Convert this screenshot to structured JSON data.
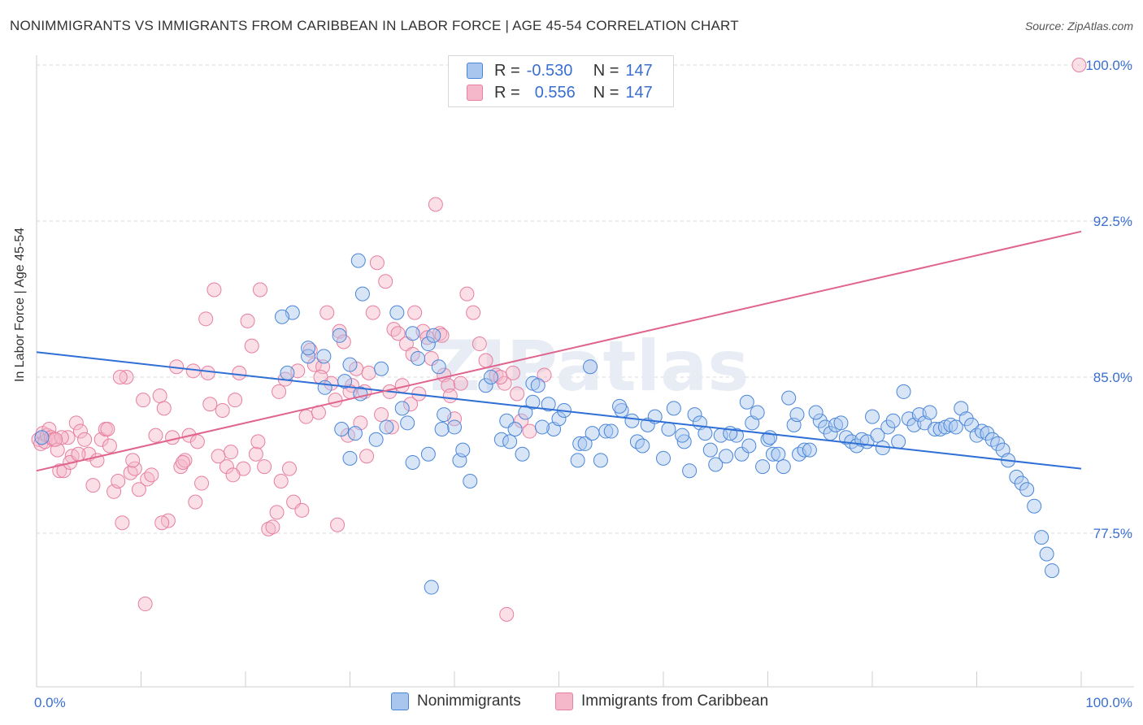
{
  "title": "NONIMMIGRANTS VS IMMIGRANTS FROM CARIBBEAN IN LABOR FORCE | AGE 45-54 CORRELATION CHART",
  "source": "Source: ZipAtlas.com",
  "watermark": "ZIPatlas",
  "legend": {
    "rows": [
      {
        "r_label": "R =",
        "r_value": "-0.530",
        "n_label": "N =",
        "n_value": "147",
        "color": "#a9c6ee"
      },
      {
        "r_label": "R =",
        "r_value": "0.556",
        "n_label": "N =",
        "n_value": "147",
        "color": "#f5b8ca"
      }
    ]
  },
  "bottom_legend": [
    {
      "label": "Nonimmigrants",
      "color": "#a9c6ee"
    },
    {
      "label": "Immigrants from Caribbean",
      "color": "#f5b8ca"
    }
  ],
  "colors": {
    "blue_fill": "#a9c6ee",
    "blue_stroke": "#4a86d8",
    "blue_line": "#2f6fd6",
    "pink_fill": "#f5b8ca",
    "pink_stroke": "#e77fa0",
    "pink_line": "#e0648e",
    "tick_text": "#3a6fd1",
    "grid": "#d9d9d9"
  },
  "chart_data": {
    "type": "scatter",
    "title": "NONIMMIGRANTS VS IMMIGRANTS FROM CARIBBEAN IN LABOR FORCE | AGE 45-54 CORRELATION CHART",
    "xlabel": "",
    "ylabel": "In Labor Force | Age 45-54",
    "xlim": [
      0,
      100
    ],
    "ylim": [
      70.0,
      101.0
    ],
    "x_tick_labels": [
      {
        "value": 0,
        "label": "0.0%"
      },
      {
        "value": 100,
        "label": "100.0%"
      }
    ],
    "y_tick_labels": [
      {
        "value": 77.5,
        "label": "77.5%"
      },
      {
        "value": 85.0,
        "label": "85.0%"
      },
      {
        "value": 92.5,
        "label": "92.5%"
      },
      {
        "value": 100.0,
        "label": "100.0%"
      }
    ],
    "grid": true,
    "legend_position": "top-center",
    "series": [
      {
        "name": "Nonimmigrants",
        "trend": {
          "x": [
            0,
            100
          ],
          "y": [
            86.2,
            80.6
          ]
        },
        "points": [
          [
            0.5,
            82.1
          ],
          [
            24,
            85.2
          ],
          [
            26,
            86.0
          ],
          [
            24.5,
            88.1
          ],
          [
            23.5,
            87.9
          ],
          [
            26,
            86.4
          ],
          [
            27.5,
            86.0
          ],
          [
            29,
            87.0
          ],
          [
            30,
            85.6
          ],
          [
            29.5,
            84.8
          ],
          [
            31,
            84.2
          ],
          [
            30.5,
            82.3
          ],
          [
            30,
            81.1
          ],
          [
            33,
            85.4
          ],
          [
            30.8,
            90.6
          ],
          [
            31.2,
            89.0
          ],
          [
            34.5,
            88.1
          ],
          [
            35,
            83.5
          ],
          [
            35.5,
            82.8
          ],
          [
            33.5,
            82.6
          ],
          [
            36,
            87.1
          ],
          [
            36.5,
            85.9
          ],
          [
            37.5,
            86.6
          ],
          [
            38,
            87.0
          ],
          [
            38.5,
            85.5
          ],
          [
            39,
            83.2
          ],
          [
            37.5,
            81.3
          ],
          [
            36,
            80.9
          ],
          [
            40,
            82.6
          ],
          [
            40.5,
            81.0
          ],
          [
            40.8,
            81.5
          ],
          [
            41.5,
            80.0
          ],
          [
            43,
            84.6
          ],
          [
            43.5,
            85.0
          ],
          [
            44.5,
            82.0
          ],
          [
            45,
            82.9
          ],
          [
            45.8,
            82.5
          ],
          [
            46.5,
            81.3
          ],
          [
            47.5,
            84.7
          ],
          [
            46.8,
            83.3
          ],
          [
            47.5,
            83.8
          ],
          [
            48,
            84.6
          ],
          [
            49,
            83.7
          ],
          [
            49.5,
            82.5
          ],
          [
            50,
            83.0
          ],
          [
            50.5,
            83.4
          ],
          [
            52,
            81.8
          ],
          [
            52.5,
            81.8
          ],
          [
            53,
            85.5
          ],
          [
            54,
            81.0
          ],
          [
            54.5,
            82.4
          ],
          [
            55,
            82.4
          ],
          [
            56,
            83.4
          ],
          [
            57,
            82.9
          ],
          [
            57.5,
            81.9
          ],
          [
            58,
            81.7
          ],
          [
            58.5,
            82.7
          ],
          [
            60,
            81.1
          ],
          [
            60.5,
            82.5
          ],
          [
            61,
            83.5
          ],
          [
            62,
            81.9
          ],
          [
            62.5,
            80.5
          ],
          [
            63,
            83.2
          ],
          [
            63.5,
            82.8
          ],
          [
            64,
            82.3
          ],
          [
            64.5,
            81.5
          ],
          [
            65,
            80.8
          ],
          [
            65.5,
            82.2
          ],
          [
            66,
            81.2
          ],
          [
            67,
            82.2
          ],
          [
            67.5,
            81.3
          ],
          [
            68,
            83.8
          ],
          [
            68.5,
            82.8
          ],
          [
            69,
            83.3
          ],
          [
            69.5,
            80.7
          ],
          [
            70,
            82.0
          ],
          [
            70.5,
            81.3
          ],
          [
            71,
            81.3
          ],
          [
            71.5,
            80.7
          ],
          [
            72,
            84.0
          ],
          [
            72.5,
            82.7
          ],
          [
            73,
            81.3
          ],
          [
            73.5,
            81.5
          ],
          [
            74,
            81.5
          ],
          [
            75,
            82.9
          ],
          [
            75.5,
            82.6
          ],
          [
            76,
            82.3
          ],
          [
            76.5,
            82.7
          ],
          [
            77,
            82.8
          ],
          [
            77.5,
            82.1
          ],
          [
            78,
            81.9
          ],
          [
            78.5,
            81.7
          ],
          [
            79,
            82.0
          ],
          [
            79.5,
            81.9
          ],
          [
            80,
            83.1
          ],
          [
            80.5,
            82.2
          ],
          [
            81,
            81.6
          ],
          [
            81.5,
            82.6
          ],
          [
            82,
            82.9
          ],
          [
            82.5,
            81.9
          ],
          [
            83,
            84.3
          ],
          [
            83.5,
            83.0
          ],
          [
            84,
            82.7
          ],
          [
            84.5,
            83.2
          ],
          [
            85,
            82.8
          ],
          [
            85.5,
            83.3
          ],
          [
            86,
            82.5
          ],
          [
            86.5,
            82.5
          ],
          [
            87,
            82.6
          ],
          [
            87.5,
            82.7
          ],
          [
            88,
            82.6
          ],
          [
            88.5,
            83.5
          ],
          [
            89,
            83.0
          ],
          [
            89.5,
            82.7
          ],
          [
            90,
            82.2
          ],
          [
            90.5,
            82.4
          ],
          [
            91,
            82.3
          ],
          [
            91.5,
            82.0
          ],
          [
            92,
            81.8
          ],
          [
            92.5,
            81.5
          ],
          [
            93,
            81.0
          ],
          [
            93.8,
            80.2
          ],
          [
            94.3,
            79.9
          ],
          [
            94.8,
            79.6
          ],
          [
            95.5,
            78.8
          ],
          [
            96.2,
            77.3
          ],
          [
            96.7,
            76.5
          ],
          [
            97.2,
            75.7
          ],
          [
            37.8,
            74.9
          ],
          [
            38.8,
            82.5
          ],
          [
            27.6,
            84.5
          ],
          [
            29.2,
            82.5
          ],
          [
            32.5,
            82.0
          ],
          [
            45.3,
            81.9
          ],
          [
            48.4,
            82.6
          ],
          [
            51.8,
            81.0
          ],
          [
            53.2,
            82.3
          ],
          [
            55.8,
            83.6
          ],
          [
            59.2,
            83.1
          ],
          [
            61.8,
            82.2
          ],
          [
            66.4,
            82.3
          ],
          [
            68.2,
            81.7
          ],
          [
            70.2,
            82.1
          ],
          [
            72.8,
            83.2
          ],
          [
            74.6,
            83.3
          ]
        ]
      },
      {
        "name": "Immigrants from Caribbean",
        "trend": {
          "x": [
            0,
            100
          ],
          "y": [
            80.5,
            92.0
          ]
        },
        "points": [
          [
            0.2,
            82.0
          ],
          [
            0.4,
            81.8
          ],
          [
            0.6,
            82.3
          ],
          [
            0.8,
            81.9
          ],
          [
            1.0,
            82.2
          ],
          [
            1.2,
            82.5
          ],
          [
            1.4,
            82.1
          ],
          [
            1.6,
            82.0
          ],
          [
            2.0,
            81.5
          ],
          [
            2.2,
            80.5
          ],
          [
            2.6,
            80.5
          ],
          [
            3.0,
            82.1
          ],
          [
            3.4,
            81.2
          ],
          [
            3.8,
            82.8
          ],
          [
            4.2,
            82.4
          ],
          [
            4.6,
            82.0
          ],
          [
            5.0,
            81.3
          ],
          [
            5.4,
            79.8
          ],
          [
            5.8,
            81.0
          ],
          [
            6.2,
            82.0
          ],
          [
            6.6,
            82.5
          ],
          [
            7.0,
            81.7
          ],
          [
            7.4,
            79.5
          ],
          [
            7.8,
            80.0
          ],
          [
            8.2,
            78.0
          ],
          [
            8.6,
            85.0
          ],
          [
            9.0,
            80.4
          ],
          [
            9.4,
            80.6
          ],
          [
            9.8,
            79.6
          ],
          [
            10.2,
            83.9
          ],
          [
            10.6,
            80.1
          ],
          [
            11.0,
            80.3
          ],
          [
            11.4,
            82.2
          ],
          [
            11.8,
            84.1
          ],
          [
            12.2,
            83.5
          ],
          [
            12.6,
            78.1
          ],
          [
            13.0,
            82.1
          ],
          [
            13.4,
            85.5
          ],
          [
            13.8,
            80.7
          ],
          [
            14.2,
            81.0
          ],
          [
            14.6,
            82.2
          ],
          [
            15.0,
            85.3
          ],
          [
            15.4,
            81.9
          ],
          [
            15.8,
            79.9
          ],
          [
            16.2,
            87.8
          ],
          [
            16.6,
            83.7
          ],
          [
            17.0,
            89.2
          ],
          [
            17.4,
            81.2
          ],
          [
            17.8,
            83.4
          ],
          [
            18.2,
            80.7
          ],
          [
            18.6,
            81.4
          ],
          [
            19.0,
            83.9
          ],
          [
            19.4,
            85.2
          ],
          [
            19.8,
            80.6
          ],
          [
            20.2,
            87.7
          ],
          [
            20.6,
            86.5
          ],
          [
            21.0,
            81.3
          ],
          [
            21.4,
            89.2
          ],
          [
            21.8,
            80.7
          ],
          [
            22.2,
            77.7
          ],
          [
            22.6,
            77.8
          ],
          [
            23.0,
            78.5
          ],
          [
            23.4,
            80.0
          ],
          [
            23.8,
            84.9
          ],
          [
            24.2,
            80.6
          ],
          [
            24.6,
            79.0
          ],
          [
            25.0,
            85.3
          ],
          [
            25.4,
            78.6
          ],
          [
            25.8,
            83.1
          ],
          [
            26.2,
            86.3
          ],
          [
            26.6,
            85.6
          ],
          [
            27.0,
            83.3
          ],
          [
            27.4,
            85.5
          ],
          [
            27.8,
            88.1
          ],
          [
            28.2,
            84.7
          ],
          [
            28.6,
            83.9
          ],
          [
            29.0,
            87.2
          ],
          [
            29.4,
            86.7
          ],
          [
            29.8,
            82.2
          ],
          [
            30.2,
            84.6
          ],
          [
            30.6,
            85.4
          ],
          [
            31.0,
            82.8
          ],
          [
            31.4,
            84.3
          ],
          [
            31.8,
            85.2
          ],
          [
            32.2,
            88.1
          ],
          [
            32.6,
            90.5
          ],
          [
            33.0,
            83.2
          ],
          [
            33.4,
            89.6
          ],
          [
            33.8,
            84.3
          ],
          [
            34.2,
            87.3
          ],
          [
            34.6,
            87.1
          ],
          [
            35.0,
            84.6
          ],
          [
            35.4,
            86.6
          ],
          [
            35.8,
            83.7
          ],
          [
            36.2,
            88.1
          ],
          [
            36.6,
            84.2
          ],
          [
            37.0,
            87.2
          ],
          [
            37.4,
            86.9
          ],
          [
            37.8,
            85.9
          ],
          [
            38.2,
            93.3
          ],
          [
            38.6,
            87.1
          ],
          [
            39.0,
            85.1
          ],
          [
            39.4,
            84.6
          ],
          [
            40.0,
            83.0
          ],
          [
            40.6,
            84.7
          ],
          [
            41.2,
            89.0
          ],
          [
            41.8,
            88.1
          ],
          [
            42.4,
            86.6
          ],
          [
            43.0,
            85.8
          ],
          [
            44.0,
            85.1
          ],
          [
            44.8,
            84.7
          ],
          [
            45.6,
            85.2
          ],
          [
            46.4,
            82.9
          ],
          [
            2.4,
            82.1
          ],
          [
            3.2,
            80.9
          ],
          [
            6.8,
            82.5
          ],
          [
            8.0,
            85.0
          ],
          [
            10.4,
            74.1
          ],
          [
            12.0,
            78.0
          ],
          [
            14.0,
            80.9
          ],
          [
            16.4,
            85.2
          ],
          [
            18.8,
            80.3
          ],
          [
            21.2,
            81.9
          ],
          [
            23.2,
            84.3
          ],
          [
            27.2,
            85.0
          ],
          [
            28.8,
            77.9
          ],
          [
            30.0,
            84.3
          ],
          [
            31.6,
            81.2
          ],
          [
            34.0,
            82.6
          ],
          [
            36.0,
            86.1
          ],
          [
            38.8,
            87.0
          ],
          [
            39.6,
            84.1
          ],
          [
            44.4,
            85.0
          ],
          [
            47.2,
            82.4
          ],
          [
            48.6,
            85.1
          ],
          [
            46.0,
            84.2
          ],
          [
            45.0,
            73.6
          ],
          [
            99.8,
            100.0
          ],
          [
            1.8,
            82.0
          ],
          [
            4.0,
            81.3
          ],
          [
            9.2,
            81.0
          ],
          [
            15.2,
            79.0
          ]
        ]
      }
    ]
  }
}
